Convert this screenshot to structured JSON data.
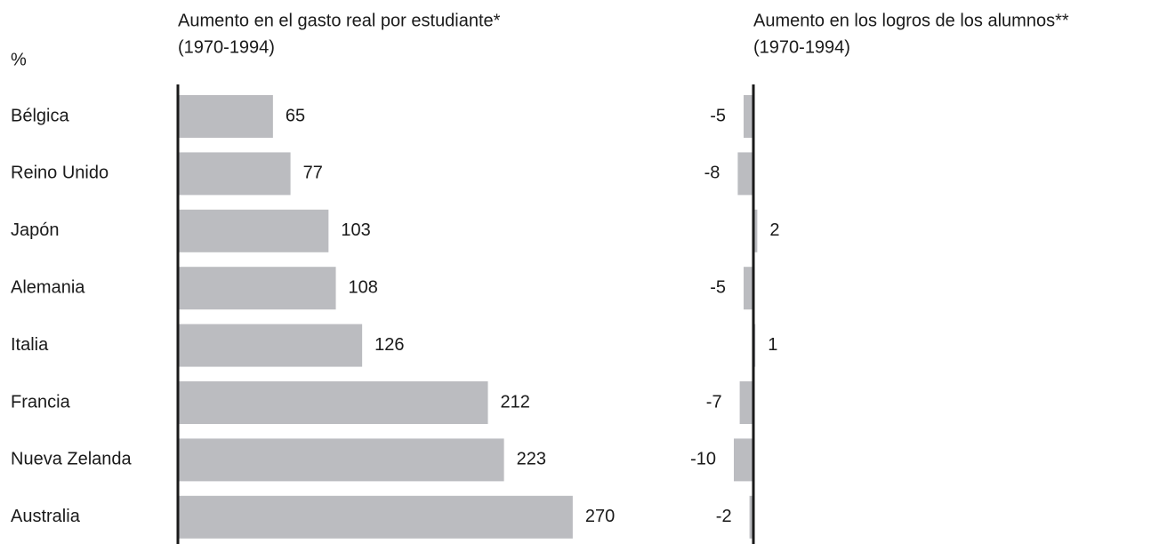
{
  "chart_data": {
    "type": "bar",
    "unit_label": "%",
    "categories": [
      "Bélgica",
      "Reino Unido",
      "Japón",
      "Alemania",
      "Italia",
      "Francia",
      "Nueva Zelanda",
      "Australia"
    ],
    "series": [
      {
        "name": "Aumento en el gasto real por estudiante*",
        "period": "(1970-1994)",
        "color": "#bbbcc0",
        "values": [
          65,
          77,
          103,
          108,
          126,
          212,
          223,
          270
        ]
      },
      {
        "name": "Aumento en los logros de los alumnos**",
        "period": "(1970-1994)",
        "color": "#bbbcc0",
        "values": [
          -5,
          -8,
          2,
          -5,
          1,
          -7,
          -10,
          -2
        ]
      }
    ]
  }
}
